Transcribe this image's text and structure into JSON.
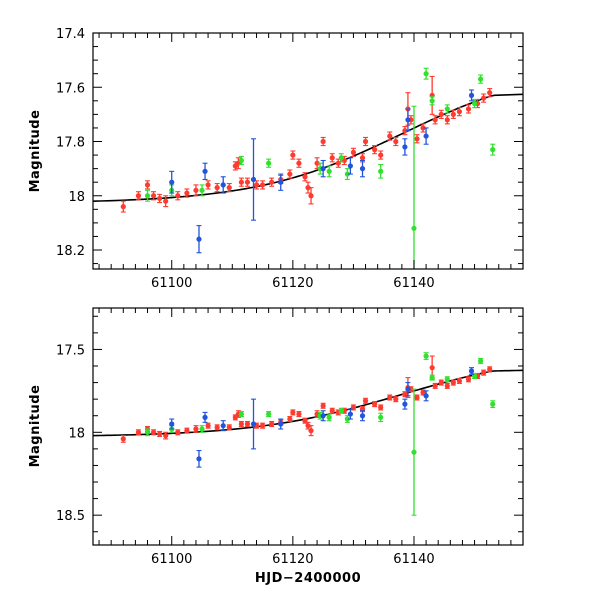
{
  "chart_data": [
    {
      "type": "scatter",
      "title": "",
      "xlabel": "",
      "ylabel": "Magnitude",
      "xlim": [
        61087,
        61158
      ],
      "ylim": [
        17.4,
        18.27
      ],
      "y_inverted": true,
      "xticks": [
        61100,
        61120,
        61140
      ],
      "xtick_labels": [
        "61100",
        "61120",
        "61140"
      ],
      "yticks": [
        17.4,
        17.6,
        17.8,
        18.0,
        18.2
      ],
      "ytick_labels": [
        "17.4",
        "17.6",
        "17.8",
        "18",
        "18.2"
      ],
      "series": [
        {
          "name": "red",
          "color": "#ff3b30",
          "points": [
            [
              61092.0,
              18.04,
              0.02
            ],
            [
              61094.5,
              18.0,
              0.015
            ],
            [
              61096.0,
              17.96,
              0.015
            ],
            [
              61097.0,
              18.0,
              0.015
            ],
            [
              61098.0,
              18.01,
              0.015
            ],
            [
              61099.0,
              18.02,
              0.02
            ],
            [
              61101.0,
              18.0,
              0.015
            ],
            [
              61102.5,
              17.99,
              0.015
            ],
            [
              61104.0,
              17.98,
              0.02
            ],
            [
              61106.0,
              17.96,
              0.015
            ],
            [
              61107.5,
              17.97,
              0.015
            ],
            [
              61109.5,
              17.97,
              0.015
            ],
            [
              61110.5,
              17.89,
              0.015
            ],
            [
              61111.0,
              17.88,
              0.02
            ],
            [
              61111.5,
              17.95,
              0.015
            ],
            [
              61112.5,
              17.95,
              0.015
            ],
            [
              61114.0,
              17.96,
              0.015
            ],
            [
              61115.0,
              17.96,
              0.015
            ],
            [
              61116.5,
              17.95,
              0.015
            ],
            [
              61118.0,
              17.94,
              0.015
            ],
            [
              61119.5,
              17.92,
              0.015
            ],
            [
              61120.0,
              17.85,
              0.015
            ],
            [
              61121.0,
              17.88,
              0.015
            ],
            [
              61122.0,
              17.93,
              0.015
            ],
            [
              61122.5,
              17.97,
              0.02
            ],
            [
              61123.0,
              18.0,
              0.03
            ],
            [
              61124.0,
              17.88,
              0.02
            ],
            [
              61125.0,
              17.8,
              0.015
            ],
            [
              61126.5,
              17.86,
              0.015
            ],
            [
              61127.5,
              17.88,
              0.015
            ],
            [
              61128.5,
              17.87,
              0.015
            ],
            [
              61130.0,
              17.84,
              0.015
            ],
            [
              61131.5,
              17.86,
              0.015
            ],
            [
              61132.0,
              17.8,
              0.015
            ],
            [
              61133.5,
              17.83,
              0.015
            ],
            [
              61134.5,
              17.85,
              0.015
            ],
            [
              61136.0,
              17.78,
              0.015
            ],
            [
              61137.0,
              17.8,
              0.015
            ],
            [
              61138.5,
              17.76,
              0.015
            ],
            [
              61139.0,
              17.68,
              0.06
            ],
            [
              61139.5,
              17.72,
              0.015
            ],
            [
              61140.5,
              17.79,
              0.015
            ],
            [
              61141.5,
              17.75,
              0.015
            ],
            [
              61143.0,
              17.63,
              0.07
            ],
            [
              61143.5,
              17.72,
              0.015
            ],
            [
              61144.5,
              17.7,
              0.015
            ],
            [
              61145.5,
              17.72,
              0.015
            ],
            [
              61146.5,
              17.7,
              0.015
            ],
            [
              61147.5,
              17.69,
              0.015
            ],
            [
              61149.0,
              17.68,
              0.015
            ],
            [
              61150.5,
              17.66,
              0.015
            ],
            [
              61151.5,
              17.64,
              0.015
            ],
            [
              61152.5,
              17.62,
              0.015
            ]
          ]
        },
        {
          "name": "green",
          "color": "#32e02e",
          "points": [
            [
              61096.0,
              18.0,
              0.02
            ],
            [
              61100.0,
              17.98,
              0.02
            ],
            [
              61105.0,
              17.98,
              0.02
            ],
            [
              61111.5,
              17.87,
              0.015
            ],
            [
              61116.0,
              17.88,
              0.015
            ],
            [
              61124.5,
              17.9,
              0.02
            ],
            [
              61126.0,
              17.91,
              0.02
            ],
            [
              61128.0,
              17.86,
              0.015
            ],
            [
              61129.0,
              17.92,
              0.02
            ],
            [
              61134.5,
              17.91,
              0.025
            ],
            [
              61140.0,
              18.12,
              0.45
            ],
            [
              61142.0,
              17.55,
              0.02
            ],
            [
              61143.0,
              17.65,
              0.015
            ],
            [
              61145.5,
              17.68,
              0.015
            ],
            [
              61150.0,
              17.66,
              0.015
            ],
            [
              61151.0,
              17.57,
              0.015
            ],
            [
              61153.0,
              17.83,
              0.02
            ]
          ]
        },
        {
          "name": "blue",
          "color": "#2255dd",
          "points": [
            [
              61100.0,
              17.95,
              0.04
            ],
            [
              61104.5,
              18.16,
              0.05
            ],
            [
              61105.5,
              17.91,
              0.03
            ],
            [
              61108.5,
              17.96,
              0.03
            ],
            [
              61113.5,
              17.94,
              0.15
            ],
            [
              61118.0,
              17.95,
              0.03
            ],
            [
              61125.0,
              17.9,
              0.03
            ],
            [
              61129.5,
              17.89,
              0.03
            ],
            [
              61131.5,
              17.9,
              0.03
            ],
            [
              61138.5,
              17.82,
              0.03
            ],
            [
              61139.0,
              17.72,
              0.04
            ],
            [
              61142.0,
              17.78,
              0.03
            ],
            [
              61149.5,
              17.63,
              0.02
            ]
          ]
        }
      ],
      "model_curve": {
        "x0": 61087,
        "x1": 61158,
        "y_start": 18.02,
        "y_end": 17.63
      }
    },
    {
      "type": "scatter",
      "title": "",
      "xlabel": "HJD−2400000",
      "ylabel": "Magnitude",
      "xlim": [
        61087,
        61158
      ],
      "ylim": [
        17.25,
        18.68
      ],
      "y_inverted": true,
      "xticks": [
        61100,
        61120,
        61140
      ],
      "xtick_labels": [
        "61100",
        "61120",
        "61140"
      ],
      "yticks": [
        17.5,
        18.0,
        18.5
      ],
      "ytick_labels": [
        "17.5",
        "18",
        "18.5"
      ],
      "series": [
        {
          "name": "red",
          "color": "#ff3b30",
          "points": [
            [
              61092.0,
              18.04,
              0.02
            ],
            [
              61094.5,
              18.0,
              0.015
            ],
            [
              61096.0,
              17.98,
              0.015
            ],
            [
              61097.0,
              18.0,
              0.015
            ],
            [
              61098.0,
              18.01,
              0.015
            ],
            [
              61099.0,
              18.02,
              0.02
            ],
            [
              61101.0,
              18.0,
              0.015
            ],
            [
              61102.5,
              17.99,
              0.015
            ],
            [
              61104.0,
              17.98,
              0.02
            ],
            [
              61106.0,
              17.96,
              0.015
            ],
            [
              61107.5,
              17.97,
              0.015
            ],
            [
              61109.5,
              17.97,
              0.015
            ],
            [
              61110.5,
              17.91,
              0.015
            ],
            [
              61111.0,
              17.89,
              0.02
            ],
            [
              61111.5,
              17.95,
              0.015
            ],
            [
              61112.5,
              17.95,
              0.015
            ],
            [
              61114.0,
              17.96,
              0.015
            ],
            [
              61115.0,
              17.96,
              0.015
            ],
            [
              61116.5,
              17.95,
              0.015
            ],
            [
              61118.0,
              17.94,
              0.015
            ],
            [
              61119.5,
              17.92,
              0.015
            ],
            [
              61120.0,
              17.88,
              0.015
            ],
            [
              61121.0,
              17.89,
              0.015
            ],
            [
              61122.0,
              17.93,
              0.015
            ],
            [
              61122.5,
              17.96,
              0.02
            ],
            [
              61123.0,
              17.99,
              0.03
            ],
            [
              61124.0,
              17.89,
              0.02
            ],
            [
              61125.0,
              17.84,
              0.015
            ],
            [
              61126.5,
              17.87,
              0.015
            ],
            [
              61127.5,
              17.88,
              0.015
            ],
            [
              61128.5,
              17.87,
              0.015
            ],
            [
              61130.0,
              17.85,
              0.015
            ],
            [
              61131.5,
              17.86,
              0.015
            ],
            [
              61132.0,
              17.81,
              0.015
            ],
            [
              61133.5,
              17.83,
              0.015
            ],
            [
              61134.5,
              17.85,
              0.015
            ],
            [
              61136.0,
              17.79,
              0.015
            ],
            [
              61137.0,
              17.8,
              0.015
            ],
            [
              61138.5,
              17.77,
              0.015
            ],
            [
              61139.0,
              17.73,
              0.06
            ],
            [
              61139.5,
              17.74,
              0.015
            ],
            [
              61140.5,
              17.79,
              0.015
            ],
            [
              61141.5,
              17.76,
              0.015
            ],
            [
              61143.0,
              17.61,
              0.07
            ],
            [
              61143.5,
              17.72,
              0.015
            ],
            [
              61144.5,
              17.7,
              0.015
            ],
            [
              61145.5,
              17.72,
              0.015
            ],
            [
              61146.5,
              17.7,
              0.015
            ],
            [
              61147.5,
              17.69,
              0.015
            ],
            [
              61149.0,
              17.68,
              0.015
            ],
            [
              61150.5,
              17.66,
              0.015
            ],
            [
              61151.5,
              17.64,
              0.015
            ],
            [
              61152.5,
              17.62,
              0.015
            ]
          ]
        },
        {
          "name": "green",
          "color": "#32e02e",
          "points": [
            [
              61096.0,
              18.0,
              0.02
            ],
            [
              61100.0,
              17.98,
              0.02
            ],
            [
              61105.0,
              17.98,
              0.02
            ],
            [
              61111.5,
              17.89,
              0.015
            ],
            [
              61116.0,
              17.89,
              0.015
            ],
            [
              61124.5,
              17.9,
              0.02
            ],
            [
              61126.0,
              17.91,
              0.02
            ],
            [
              61128.0,
              17.87,
              0.015
            ],
            [
              61129.0,
              17.92,
              0.02
            ],
            [
              61134.5,
              17.91,
              0.025
            ],
            [
              61140.0,
              18.12,
              0.38
            ],
            [
              61142.0,
              17.54,
              0.02
            ],
            [
              61143.0,
              17.67,
              0.015
            ],
            [
              61145.5,
              17.68,
              0.015
            ],
            [
              61150.0,
              17.66,
              0.015
            ],
            [
              61151.0,
              17.57,
              0.015
            ],
            [
              61153.0,
              17.83,
              0.02
            ]
          ]
        },
        {
          "name": "blue",
          "color": "#2255dd",
          "points": [
            [
              61100.0,
              17.95,
              0.03
            ],
            [
              61104.5,
              18.16,
              0.05
            ],
            [
              61105.5,
              17.91,
              0.03
            ],
            [
              61108.5,
              17.96,
              0.03
            ],
            [
              61113.5,
              17.95,
              0.15
            ],
            [
              61118.0,
              17.95,
              0.03
            ],
            [
              61125.0,
              17.9,
              0.03
            ],
            [
              61129.5,
              17.89,
              0.03
            ],
            [
              61131.5,
              17.9,
              0.03
            ],
            [
              61138.5,
              17.83,
              0.03
            ],
            [
              61139.0,
              17.74,
              0.04
            ],
            [
              61142.0,
              17.78,
              0.03
            ],
            [
              61149.5,
              17.63,
              0.02
            ]
          ]
        }
      ],
      "model_curve": {
        "x0": 61087,
        "x1": 61158,
        "y_start": 18.02,
        "y_end": 17.63
      }
    }
  ]
}
